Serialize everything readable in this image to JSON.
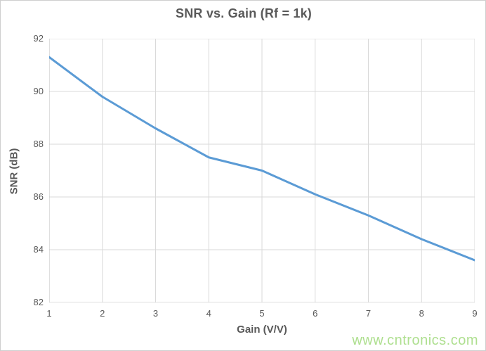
{
  "chart_data": {
    "type": "line",
    "title": "SNR vs. Gain (Rf = 1k)",
    "xlabel": "Gain (V/V)",
    "ylabel": "SNR (dB)",
    "x": [
      1,
      2,
      3,
      4,
      5,
      6,
      7,
      8,
      9
    ],
    "series": [
      {
        "name": "SNR",
        "values": [
          91.3,
          89.8,
          88.6,
          87.5,
          87.0,
          86.1,
          85.3,
          84.4,
          83.6
        ]
      }
    ],
    "xlim": [
      1,
      9
    ],
    "ylim": [
      82,
      92
    ],
    "x_ticks": [
      1,
      2,
      3,
      4,
      5,
      6,
      7,
      8,
      9
    ],
    "y_ticks": [
      82,
      84,
      86,
      88,
      90,
      92
    ],
    "grid": true,
    "legend_position": "none"
  },
  "watermark": {
    "text": "www.cntronics.com"
  },
  "colors": {
    "line": "#5B9BD5",
    "text": "#595959",
    "gridline": "#D9D9D9",
    "axis_line": "#BFBFBF",
    "watermark": "#AEDF8F",
    "background": "#FFFFFF"
  }
}
